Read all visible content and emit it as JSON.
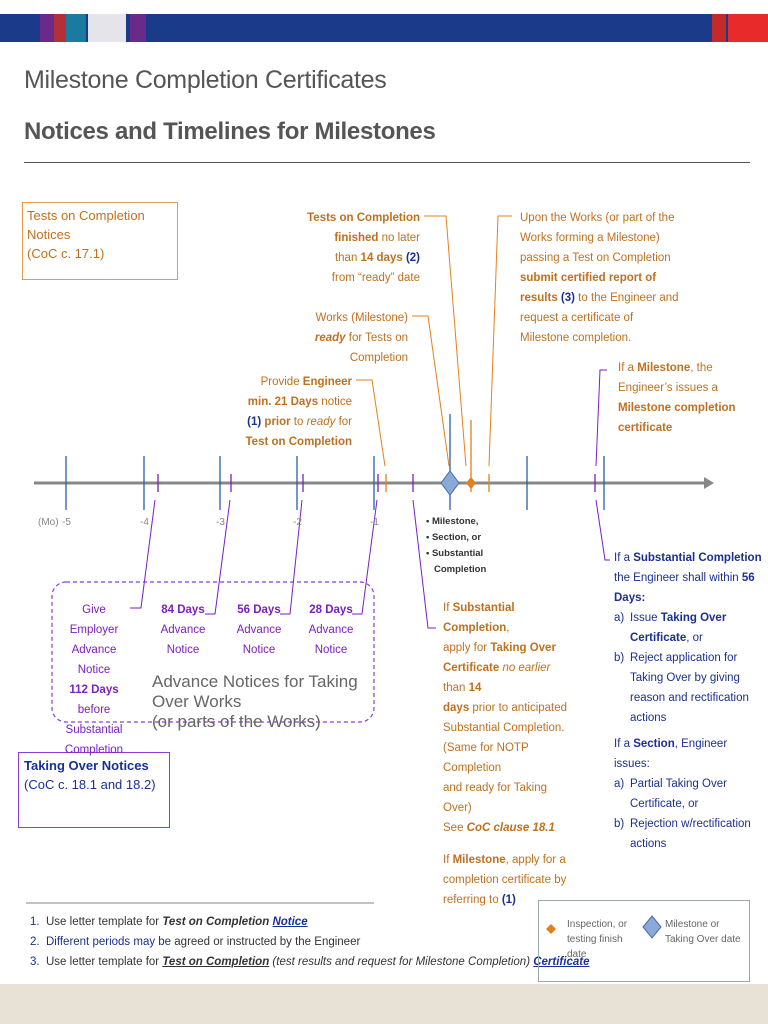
{
  "header": {
    "title": "Milestone Completion Certificates",
    "subtitle": "Notices and Timelines for Milestones"
  },
  "boxes": {
    "tests": {
      "title": "Tests on Completion Notices",
      "clause": "(CoC c. 17.1)"
    },
    "takeover": {
      "title": "Taking Over Notices",
      "clause": "(CoC c. 18.1 and 18.2)"
    }
  },
  "axis": {
    "mo": "(Mo)",
    "ticks": [
      "-5",
      "-4",
      "-3",
      "-2",
      "-1"
    ]
  },
  "ann": {
    "toc_finished": {
      "a": "Tests on Completion",
      "b": "finished",
      "c": " no later",
      "d": "than ",
      "e": "14 days",
      "f": " (2)",
      "g": "from  “ready” date"
    },
    "upon": {
      "l1": "Upon the Works (or part of the",
      "l2": "Works forming a Milestone)",
      "l3": "passing  a Test  on Completion",
      "l4": "submit certified report of",
      "l5a": "results",
      "l5b": " (3)",
      "l5c": " to the Engineer and",
      "l6": "request a certificate of",
      "l7": "Milestone completion."
    },
    "works_ready": {
      "l1": "Works (Milestone)",
      "l2a": "ready",
      "l2b": " for Tests on",
      "l3": "Completion"
    },
    "provide": {
      "l1a": "Provide ",
      "l1b": "Engineer",
      "l2": "min. 21 Days",
      "l2b": " notice",
      "l3a": "(1)",
      "l3b": " prior",
      "l3c": " to ",
      "l3d": "ready",
      "l3e": " for",
      "l4": "Test on Completion"
    },
    "milestone_cert": {
      "l1a": "If a ",
      "l1b": "Milestone",
      "l1c": ", the",
      "l2": "Engineer’s issues a",
      "l3": "Milestone completion",
      "l4": "certificate"
    },
    "bullets": [
      "Milestone,",
      "Section, or",
      "Substantial",
      "Completion"
    ]
  },
  "notices": {
    "give": {
      "l1": "Give Employer",
      "l2": "Advance Notice",
      "l3a": "112 Days",
      "l3b": " before",
      "l4": "Substantial",
      "l5": "Completion"
    },
    "d84": {
      "l1": "84 Days",
      "l2": "Advance",
      "l3": "Notice"
    },
    "d56": {
      "l1": "56 Days",
      "l2": "Advance",
      "l3": "Notice"
    },
    "d28": {
      "l1": "28 Days",
      "l2": "Advance",
      "l3": "Notice"
    },
    "caption1": "Advance Notices for Taking Over Works",
    "caption2": "(or parts of the Works)"
  },
  "substantial_apply": {
    "l1a": "If  ",
    "l1b": "Substantial Completion",
    "l1c": ",",
    "l2a": "apply for ",
    "l2b": "Taking Over",
    "l3a": "Certificate",
    "l3b": " no earlier",
    "l3c": " than ",
    "l3d": "14",
    "l4a": "days",
    "l4b": " prior to anticipated",
    "l5": "Substantial Completion.",
    "l6": "(Same for NOTP Completion",
    "l7": "and ready for Taking Over)",
    "l8a": "See ",
    "l8b": "CoC clause 18.1",
    "m1a": "If ",
    "m1b": "Milestone",
    "m1c": ", apply for a",
    "m2": "completion certificate by",
    "m3a": "referring to ",
    "m3b": "(1)"
  },
  "substantial_engineer": {
    "l1a": "If a ",
    "l1b": "Substantial Completion",
    "l2a": "the Engineer shall within ",
    "l2b": "56",
    "l3": "Days:",
    "a_label": "a)",
    "a1a": "Issue ",
    "a1b": "Taking Over",
    "a2": "Certificate",
    "a2b": ", or",
    "b_label": "b)",
    "b1": "Reject application for",
    "b2": "Taking Over by giving",
    "b3": "reason and rectification",
    "b4": "actions",
    "s1a": "If a ",
    "s1b": "Section",
    "s1c": ", Engineer issues:",
    "sa_label": "a)",
    "sa1": "Partial Taking Over",
    "sa2": "Certificate, or",
    "sb_label": "b)",
    "sb1": "Rejection w/rectification",
    "sb2": "actions"
  },
  "footnotes": [
    {
      "n": "1.",
      "pre": "Use letter template for ",
      "it": "Test on Completion",
      "link": "Notice",
      "post": ""
    },
    {
      "n": "2.",
      "pre_b": "Different periods may be",
      "rest": " agreed or instructed by the Engineer"
    },
    {
      "n": "3.",
      "pre": "Use letter template for ",
      "it": "Test on Completion",
      "mid": " (test results and request for Milestone Completion) ",
      "link": "Certificate"
    }
  ],
  "legend": {
    "inspection": [
      "Inspection, or",
      "testing finish",
      "date"
    ],
    "milestone": [
      "Milestone or",
      "Taking Over date"
    ]
  },
  "colors": {
    "navy": "#1a3a8a",
    "orange": "#e3801e",
    "purple": "#7a1fc0",
    "blue_tick": "#2a5fa8",
    "diamond": "#8aa8d8"
  }
}
